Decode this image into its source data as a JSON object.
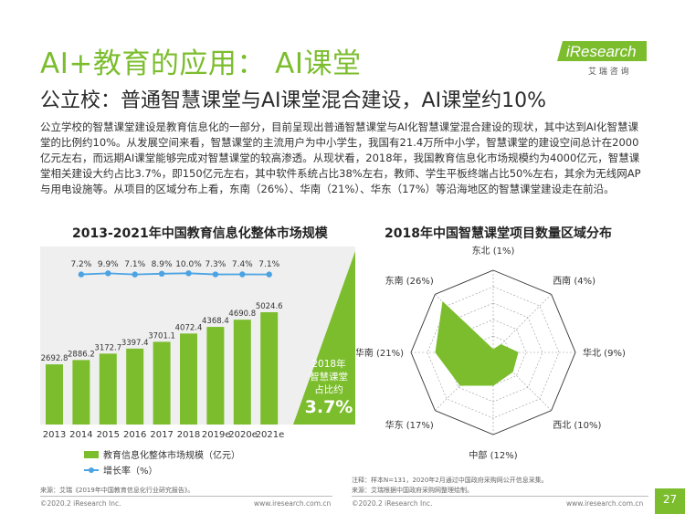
{
  "header": {
    "title": "AI+教育的应用： AI课堂",
    "subtitle": "公立校：普通智慧课堂与AI课堂混合建设，AI课堂约10%",
    "logo_text": "iResearch",
    "logo_sub": "艾 瑞 咨 询"
  },
  "body_text": "公立学校的智慧课堂建设是教育信息化的一部分，目前呈现出普通智慧课堂与AI化智慧课堂混合建设的现状，其中达到AI化智慧课堂的比例约10%。从发展空间来看，智慧课堂的主流用户为中小学生，我国有21.4万所中小学，智慧课堂的建设空间总计在2000亿元左右，而远期AI课堂能够完成对智慧课堂的较高渗透。从现状看，2018年，我国教育信息化市场规模约为4000亿元，智慧课堂相关建设大约占比3.7%，即150亿元左右，其中软件系统占比38%左右，教师、学生平板终端占比50%左右，其余为无线网AP与用电设施等。从项目的区域分布上看，东南（26%）、华南（21%）、华东（17%）等沿海地区的智慧课堂建设走在前沿。",
  "highlight": {
    "line1": "2018年",
    "line2": "智慧课堂",
    "line3": "占比约",
    "value": "3.7%"
  },
  "legend": {
    "bar_label": "教育信息化整体市场规模（亿元）",
    "line_label": "增长率（%）"
  },
  "chart_data": [
    {
      "type": "bar",
      "title": "2013-2021年中国教育信息化整体市场规模",
      "categories": [
        "2013",
        "2014",
        "2015",
        "2016",
        "2017",
        "2018",
        "2019e",
        "2020e",
        "2021e"
      ],
      "series": [
        {
          "name": "教育信息化整体市场规模（亿元）",
          "values": [
            2692.8,
            2886.2,
            3172.7,
            3397.4,
            3701.1,
            4072.4,
            4368.4,
            4690.8,
            5024.6
          ]
        },
        {
          "name": "增长率（%）",
          "type": "line",
          "values": [
            null,
            7.2,
            9.9,
            7.1,
            8.9,
            10.0,
            7.3,
            7.4,
            7.1
          ],
          "labels": [
            "",
            "7.2%",
            "9.9%",
            "7.1%",
            "8.9%",
            "10.0%",
            "7.3%",
            "7.4%",
            "7.1%"
          ]
        }
      ],
      "bar_value_labels": [
        "2692.8",
        "2886.2",
        "3172.7",
        "3397.4",
        "3701.1",
        "4072.4",
        "4368.4",
        "4690.8",
        "5024.6"
      ],
      "tick_labels": [
        "2013",
        "2014",
        "2015",
        "2016",
        "2017",
        "2018",
        "2019e",
        "2020e",
        "2021e"
      ],
      "ylim": [
        0,
        5400
      ],
      "grid": false,
      "legend_position": "bottom-left",
      "colors": {
        "bar": "#7cbd2e",
        "line": "#4ba3e3",
        "background": "#efefef"
      }
    },
    {
      "type": "radar",
      "title": "2018年中国智慧课堂项目数量区域分布",
      "categories": [
        "东北",
        "西南",
        "华北",
        "西北",
        "中部",
        "华东",
        "华南",
        "东南"
      ],
      "values": [
        1,
        4,
        9,
        10,
        12,
        17,
        21,
        26
      ],
      "labels": [
        "东北 (1%)",
        "西南 (4%)",
        "华北 (9%)",
        "西北 (10%)",
        "中部 (12%)",
        "华东 (17%)",
        "华南 (21%)",
        "东南 (26%)"
      ],
      "max": 30,
      "rings": 5,
      "colors": {
        "fill": "#7cbd2e",
        "grid": "#555555"
      }
    }
  ],
  "footnotes": {
    "left_source": "来源：艾瑞《2019年中国教育信息化行业研究报告》。",
    "right_note": "注释：样本N=131，2020年2月通过中国政府采购网公开信息采集。",
    "right_source": "来源：艾瑞根据中国政府采购网整理绘制。"
  },
  "footer": {
    "copyright_left": "©2020.2 iResearch Inc.",
    "url_left": "www.iresearch.com.cn",
    "copyright_right": "©2020.2 iResearch Inc.",
    "url_right": "www.iresearch.com.cn",
    "page": "27"
  }
}
